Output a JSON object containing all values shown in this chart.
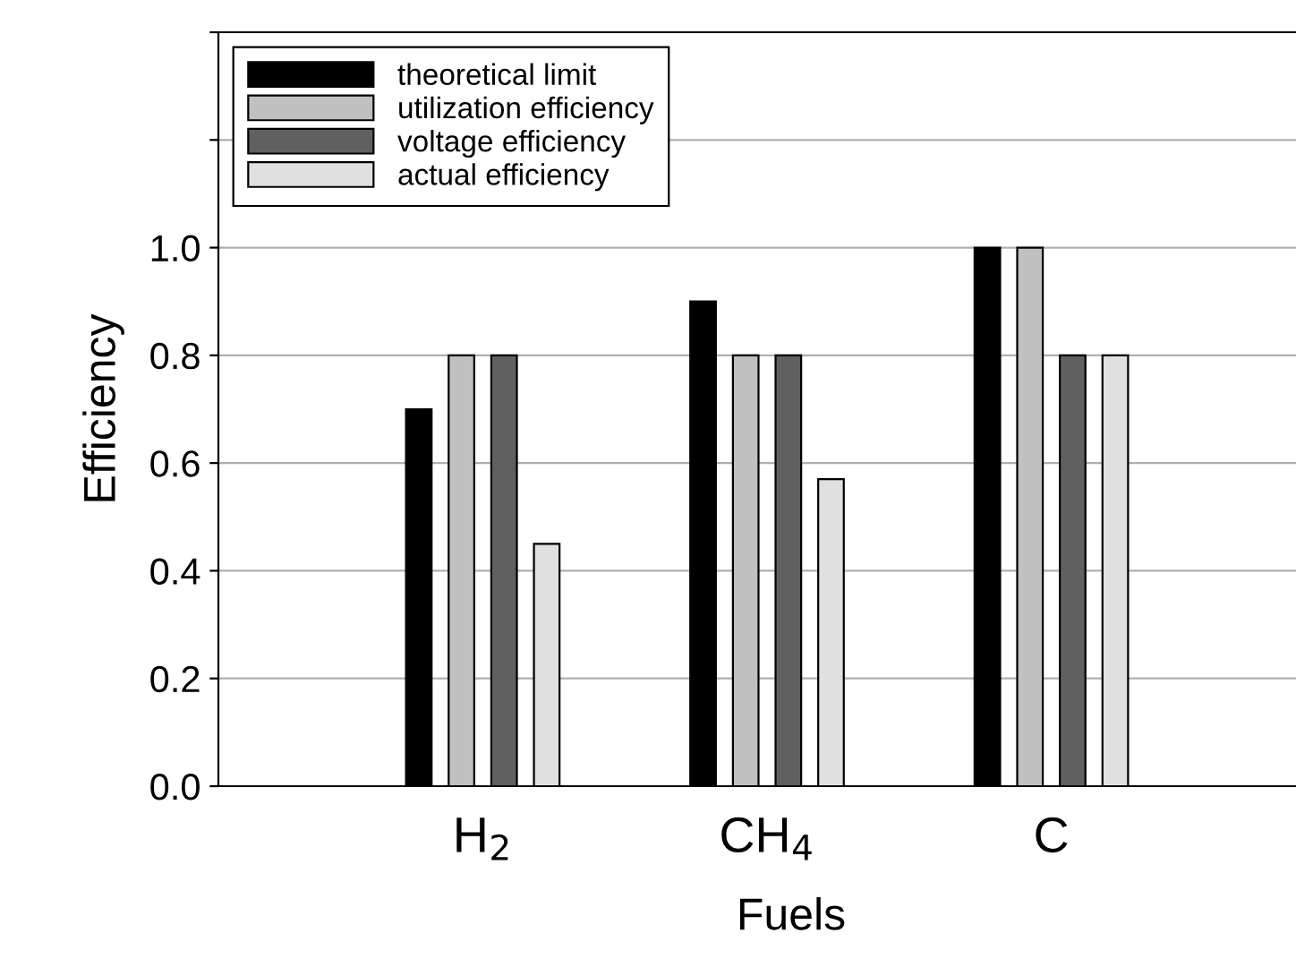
{
  "chart_data": {
    "type": "bar",
    "xlabel": "Fuels",
    "ylabel": "Efficiency",
    "categories": [
      "H$_{2}$",
      "CH$_{4}$",
      "C"
    ],
    "series": [
      {
        "name": "theoretical limit",
        "color": "#000000",
        "values": [
          0.7,
          0.9,
          1.0
        ]
      },
      {
        "name": "utilization efficiency",
        "color": "#c0c0c0",
        "values": [
          0.8,
          0.8,
          1.0
        ]
      },
      {
        "name": "voltage efficiency",
        "color": "#606060",
        "values": [
          0.8,
          0.8,
          0.8
        ]
      },
      {
        "name": "actual efficiency",
        "color": "#e0e0e0",
        "values": [
          0.45,
          0.57,
          0.8
        ]
      }
    ],
    "ylim": [
      0,
      1.4
    ],
    "yticks": [
      {
        "value": 0,
        "label": "0.0"
      },
      {
        "value": 0.2,
        "label": "0.2"
      },
      {
        "value": 0.4,
        "label": "0.4"
      },
      {
        "value": 0.6,
        "label": "0.6"
      },
      {
        "value": 0.8,
        "label": "0.8"
      },
      {
        "value": 1.0,
        "label": "1.0"
      },
      {
        "value": 1.2,
        "label": null
      },
      {
        "value": 1.4,
        "label": null
      }
    ],
    "grid": "y",
    "legend": "top left"
  }
}
